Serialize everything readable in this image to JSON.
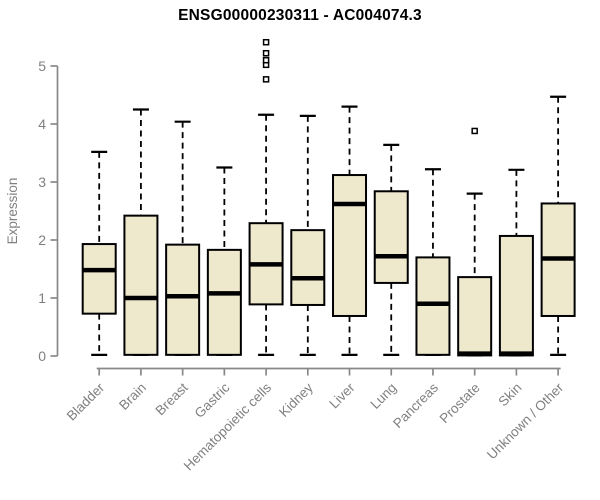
{
  "title": "ENSG00000230311 - AC004074.3",
  "chart_data": {
    "type": "boxplot",
    "title": "ENSG00000230311 - AC004074.3",
    "xlabel": "",
    "ylabel": "Expression",
    "ylim": [
      0,
      5.5
    ],
    "yticks": [
      0,
      1,
      2,
      3,
      4,
      5
    ],
    "grid": false,
    "legend": "none",
    "outlier_symbol": "open-square",
    "categories": [
      "Bladder",
      "Brain",
      "Breast",
      "Gastric",
      "Hematopoietic cells",
      "Kidney",
      "Liver",
      "Lung",
      "Pancreas",
      "Prostate",
      "Skin",
      "Unknown / Other"
    ],
    "series": [
      {
        "category": "Bladder",
        "whisker_low": 0.02,
        "q1": 0.73,
        "median": 1.48,
        "q3": 1.93,
        "whisker_high": 3.52,
        "outliers": []
      },
      {
        "category": "Brain",
        "whisker_low": 0.02,
        "q1": 0.02,
        "median": 1.0,
        "q3": 2.42,
        "whisker_high": 4.25,
        "outliers": []
      },
      {
        "category": "Breast",
        "whisker_low": 0.02,
        "q1": 0.02,
        "median": 1.03,
        "q3": 1.92,
        "whisker_high": 4.04,
        "outliers": []
      },
      {
        "category": "Gastric",
        "whisker_low": 0.02,
        "q1": 0.02,
        "median": 1.08,
        "q3": 1.83,
        "whisker_high": 3.25,
        "outliers": []
      },
      {
        "category": "Hematopoietic cells",
        "whisker_low": 0.02,
        "q1": 0.89,
        "median": 1.58,
        "q3": 2.29,
        "whisker_high": 4.16,
        "outliers": [
          4.77,
          5.02,
          5.1,
          5.22,
          5.41
        ]
      },
      {
        "category": "Kidney",
        "whisker_low": 0.02,
        "q1": 0.88,
        "median": 1.34,
        "q3": 2.17,
        "whisker_high": 4.14,
        "outliers": []
      },
      {
        "category": "Liver",
        "whisker_low": 0.02,
        "q1": 0.69,
        "median": 2.62,
        "q3": 3.12,
        "whisker_high": 4.3,
        "outliers": []
      },
      {
        "category": "Lung",
        "whisker_low": 0.02,
        "q1": 1.26,
        "median": 1.72,
        "q3": 2.84,
        "whisker_high": 3.64,
        "outliers": []
      },
      {
        "category": "Pancreas",
        "whisker_low": 0.02,
        "q1": 0.02,
        "median": 0.9,
        "q3": 1.7,
        "whisker_high": 3.22,
        "outliers": []
      },
      {
        "category": "Prostate",
        "whisker_low": 0.01,
        "q1": 0.01,
        "median": 0.04,
        "q3": 1.36,
        "whisker_high": 2.8,
        "outliers": [
          3.88
        ]
      },
      {
        "category": "Skin",
        "whisker_low": 0.01,
        "q1": 0.01,
        "median": 0.04,
        "q3": 2.07,
        "whisker_high": 3.21,
        "outliers": []
      },
      {
        "category": "Unknown / Other",
        "whisker_low": 0.02,
        "q1": 0.69,
        "median": 1.68,
        "q3": 2.63,
        "whisker_high": 4.47,
        "outliers": []
      }
    ],
    "colors": {
      "box_fill": "#EEE8CD",
      "box_border": "#000000",
      "median": "#000000",
      "whisker": "#000000",
      "axis": "#888888",
      "label": "#808080",
      "title": "#000000",
      "background": "#FFFFFF"
    }
  }
}
